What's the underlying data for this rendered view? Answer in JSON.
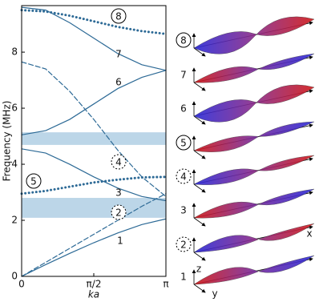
{
  "chart_data": {
    "type": "line",
    "ylabel": "Frequency (MHz)",
    "xlabel": "ka",
    "x": [
      0,
      0.524,
      1.047,
      1.571,
      2.094,
      2.618,
      3.142
    ],
    "xlim": [
      0,
      3.142
    ],
    "xticks": [
      0,
      {
        "value": 1.571,
        "label": "π/2"
      },
      {
        "value": 3.142,
        "label": "π"
      }
    ],
    "ylim": [
      0,
      9.66
    ],
    "yticks": [
      0,
      2,
      4,
      6,
      8
    ],
    "bands": [
      [
        2.09,
        2.8
      ],
      [
        4.69,
        5.14
      ]
    ],
    "band_color": "#bcd6e8",
    "series": [
      {
        "color": "#2d6a96",
        "style": "solid",
        "values": [
          0,
          0.42,
          0.82,
          1.2,
          1.55,
          1.85,
          2.05
        ]
      },
      {
        "color": "#2d6a96",
        "style": "dashed",
        "values": [
          0,
          0.5,
          1.0,
          1.5,
          2.0,
          2.5,
          2.95
        ]
      },
      {
        "color": "#2d6a96",
        "style": "solid",
        "values": [
          4.55,
          4.4,
          4.0,
          3.55,
          3.15,
          2.85,
          2.7
        ]
      },
      {
        "color": "#2d6a96",
        "style": "dotted",
        "values": [
          2.95,
          3.05,
          3.2,
          3.35,
          3.45,
          3.53,
          3.55
        ]
      },
      {
        "color": "#2d6a96",
        "style": "solid",
        "values": [
          5.05,
          5.2,
          5.6,
          6.15,
          6.7,
          7.1,
          7.35
        ]
      },
      {
        "color": "#2d6a96",
        "style": "dashed",
        "values": [
          7.65,
          7.4,
          6.6,
          5.6,
          4.5,
          3.55,
          2.85
        ]
      },
      {
        "color": "#2d6a96",
        "style": "solid",
        "values": [
          9.6,
          9.5,
          9.05,
          8.5,
          7.95,
          7.55,
          7.35
        ]
      },
      {
        "color": "#2d6a96",
        "style": "dotted",
        "values": [
          9.5,
          9.45,
          9.3,
          9.1,
          8.9,
          8.75,
          8.65
        ]
      }
    ],
    "annotations": [
      "8",
      "7",
      "6",
      "4",
      "5",
      "3",
      "2",
      "1"
    ]
  },
  "mode_panel": {
    "labels": [
      "8",
      "7",
      "6",
      "5",
      "4",
      "3",
      "2",
      "1"
    ],
    "axes": [
      "x",
      "z",
      "y"
    ]
  }
}
